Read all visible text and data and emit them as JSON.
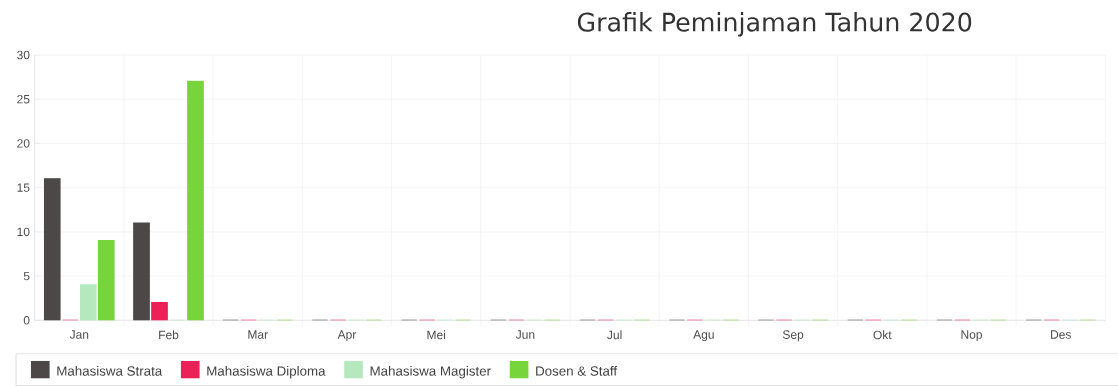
{
  "chart_data": {
    "type": "bar",
    "title": "Grafik Peminjaman Tahun 2020",
    "categories": [
      "Jan",
      "Feb",
      "Mar",
      "Apr",
      "Mei",
      "Jun",
      "Jul",
      "Agu",
      "Sep",
      "Okt",
      "Nop",
      "Des"
    ],
    "series": [
      {
        "name": "Mahasiswa Strata",
        "color": "#4d4848",
        "values": [
          16,
          11,
          0,
          0,
          0,
          0,
          0,
          0,
          0,
          0,
          0,
          0
        ]
      },
      {
        "name": "Mahasiswa Diploma",
        "color": "#ec2158",
        "values": [
          0,
          2,
          0,
          0,
          0,
          0,
          0,
          0,
          0,
          0,
          0,
          0
        ]
      },
      {
        "name": "Mahasiswa Magister",
        "color": "#b5e9bd",
        "values": [
          4,
          0,
          0,
          0,
          0,
          0,
          0,
          0,
          0,
          0,
          0,
          0
        ]
      },
      {
        "name": "Dosen & Staff",
        "color": "#77d43b",
        "values": [
          9,
          27,
          0,
          0,
          0,
          0,
          0,
          0,
          0,
          0,
          0,
          0
        ]
      }
    ],
    "ylim": [
      0,
      30
    ],
    "yticks": [
      0,
      5,
      10,
      15,
      20,
      25,
      30
    ],
    "grid": true,
    "legend": "bottom"
  }
}
